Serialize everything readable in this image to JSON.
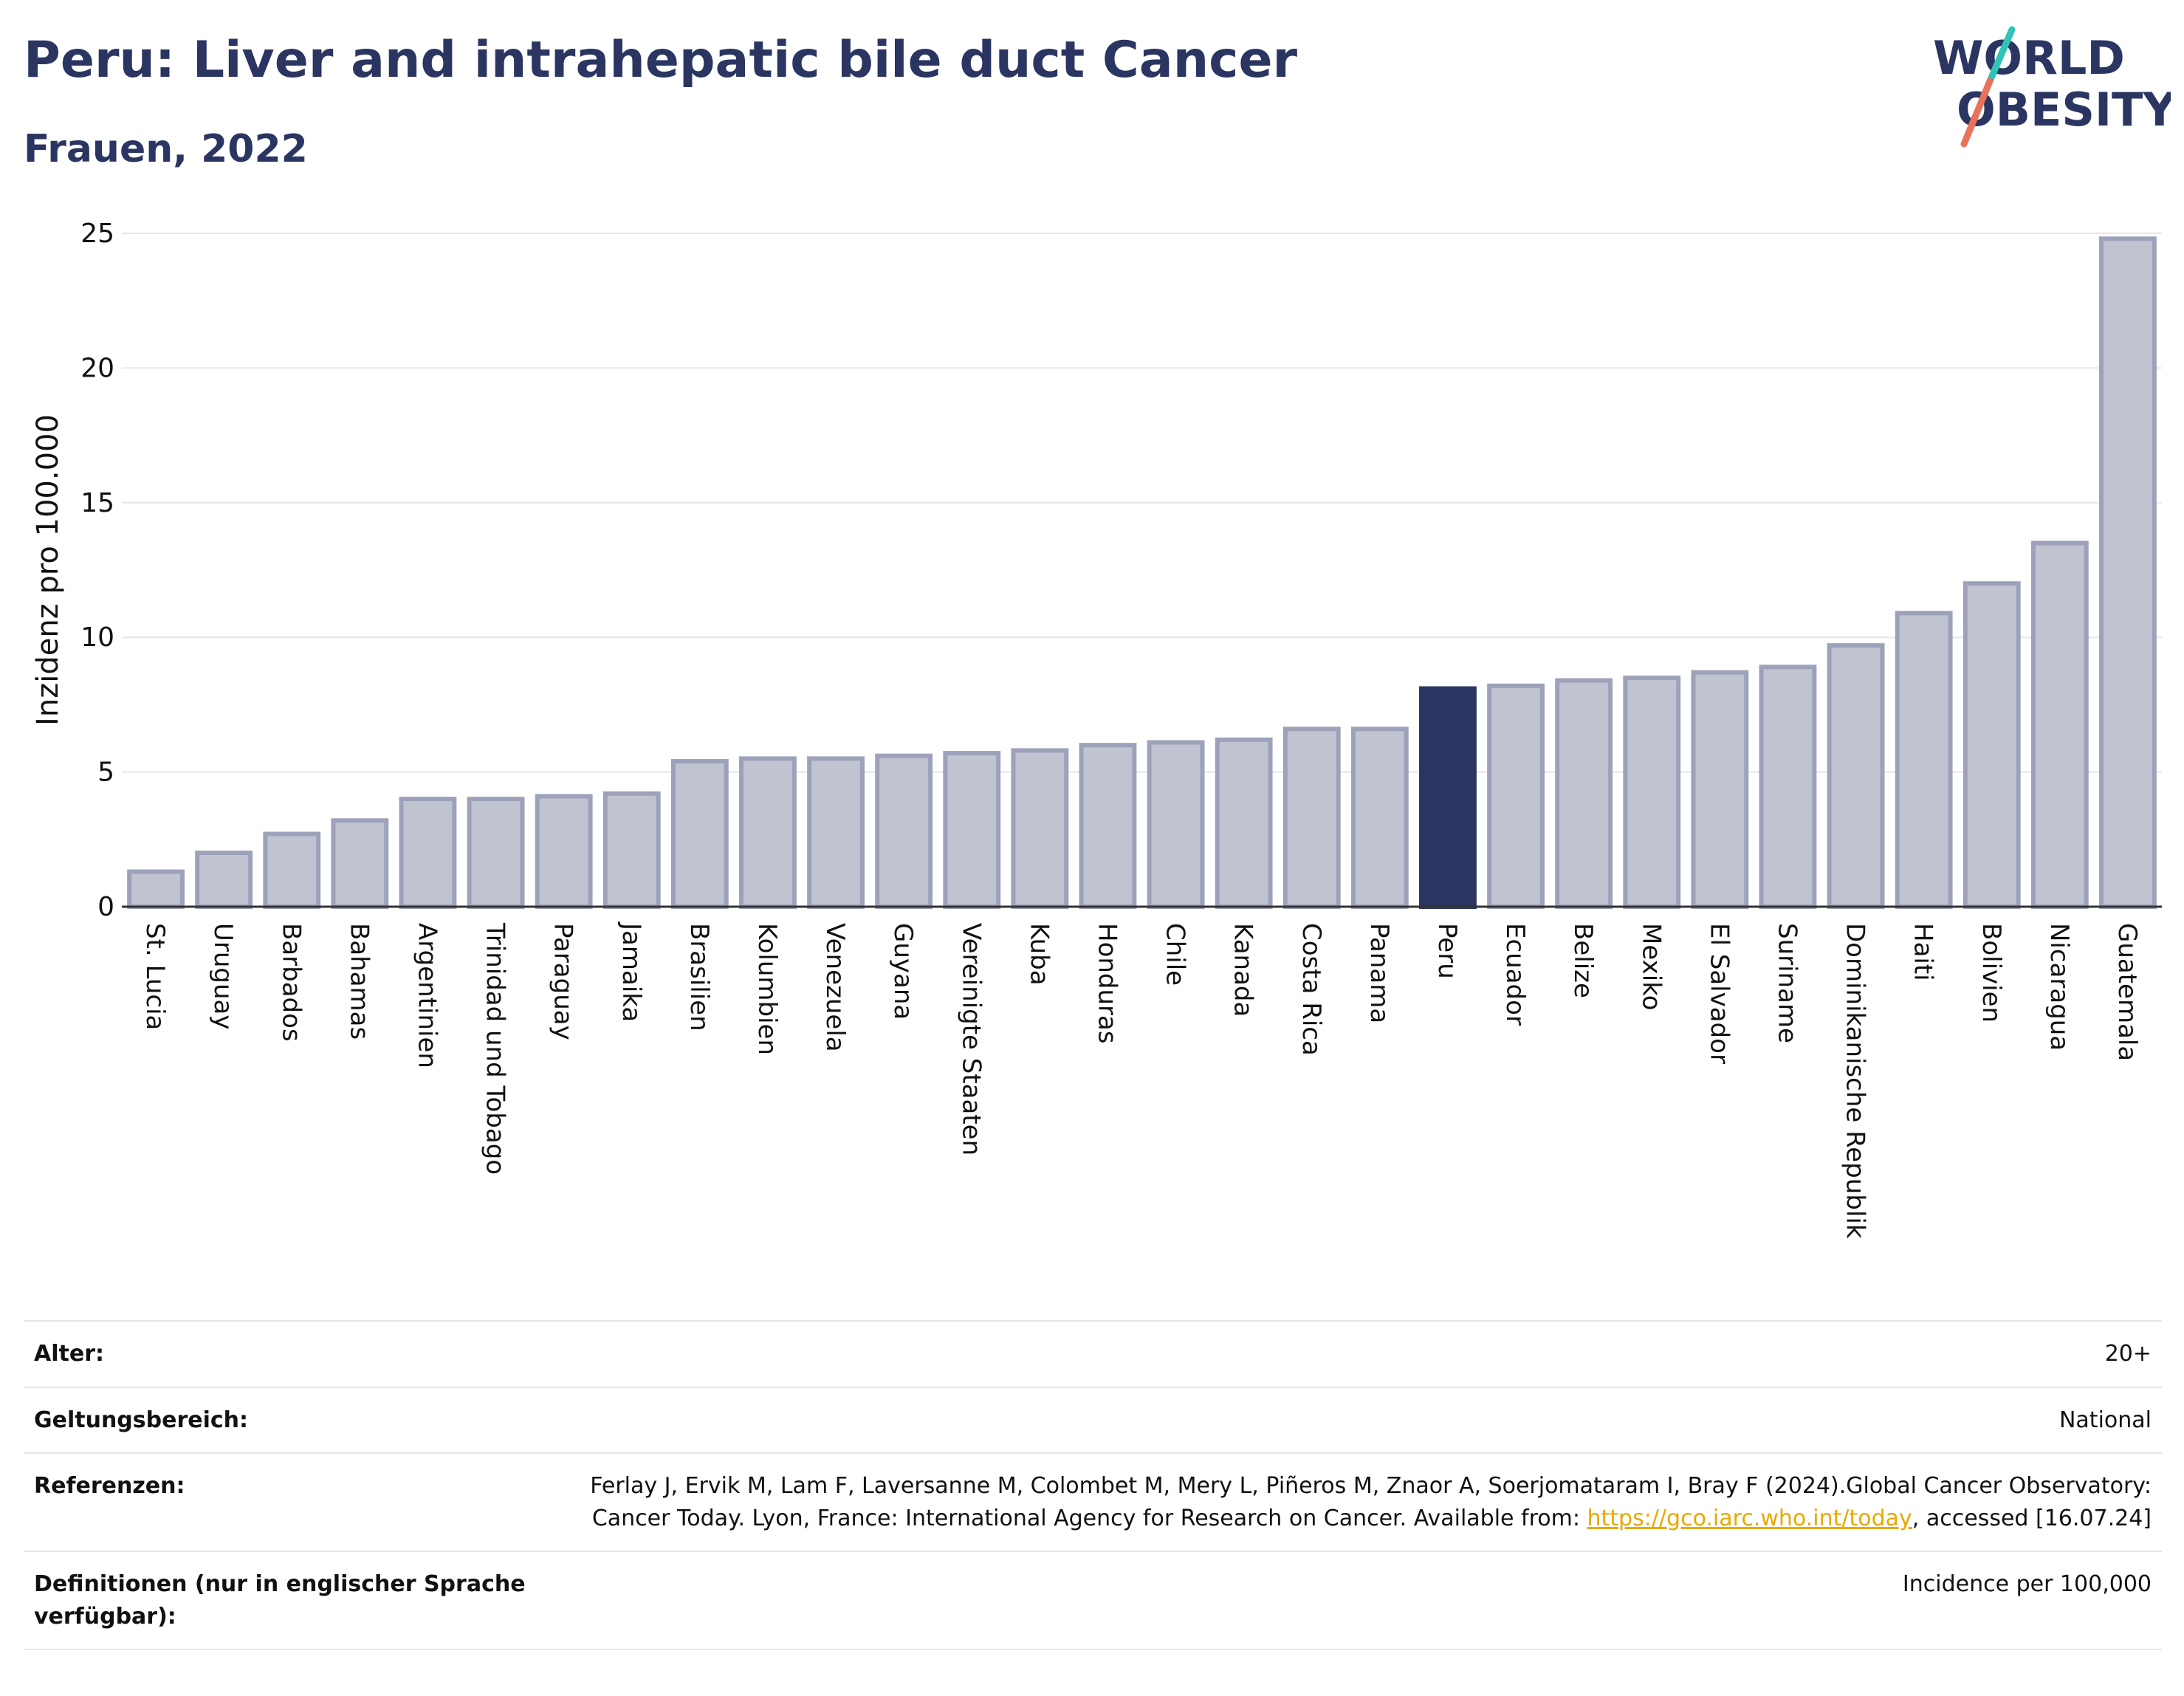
{
  "header": {
    "title": "Peru: Liver and intrahepatic bile duct Cancer",
    "subtitle": "Frauen, 2022"
  },
  "logo": {
    "line1": "WORLD",
    "line2": "OBESITY",
    "colors": {
      "text": "#2b3561",
      "slash_teal": "#2ec4b6",
      "slash_coral": "#e8735a"
    }
  },
  "chart_data": {
    "type": "bar",
    "title": "Peru: Liver and intrahepatic bile duct Cancer",
    "subtitle": "Frauen, 2022",
    "xlabel": "",
    "ylabel": "Inzidenz pro 100.000",
    "ylim": [
      0,
      25
    ],
    "yticks": [
      0,
      5,
      10,
      15,
      20,
      25
    ],
    "grid": true,
    "highlight": "Peru",
    "colors": {
      "bar": "#c0c3d0",
      "bar_border": "#9da2ba",
      "highlight": "#2b3561"
    },
    "categories": [
      "St. Lucia",
      "Uruguay",
      "Barbados",
      "Bahamas",
      "Argentinien",
      "Trinidad und Tobago",
      "Paraguay",
      "Jamaika",
      "Brasilien",
      "Kolumbien",
      "Venezuela",
      "Guyana",
      "Vereinigte Staaten",
      "Kuba",
      "Honduras",
      "Chile",
      "Kanada",
      "Costa Rica",
      "Panama",
      "Peru",
      "Ecuador",
      "Belize",
      "Mexiko",
      "El Salvador",
      "Suriname",
      "Dominikanische Republik",
      "Haiti",
      "Bolivien",
      "Nicaragua",
      "Guatemala"
    ],
    "values": [
      1.3,
      2.0,
      2.7,
      3.2,
      4.0,
      4.0,
      4.1,
      4.2,
      5.4,
      5.5,
      5.5,
      5.6,
      5.7,
      5.8,
      6.0,
      6.1,
      6.2,
      6.6,
      6.6,
      8.1,
      8.2,
      8.4,
      8.5,
      8.7,
      8.9,
      9.7,
      10.9,
      12.0,
      13.5,
      24.8
    ]
  },
  "info": {
    "age": {
      "label": "Alter:",
      "value": "20+"
    },
    "scope": {
      "label": "Geltungsbereich:",
      "value": "National"
    },
    "references": {
      "label": "Referenzen:",
      "text1": "Ferlay J, Ervik M, Lam F, Laversanne M, Colombet M, Mery L, Piñeros M, Znaor A, Soerjomataram I, Bray F (2024).Global Cancer Observatory: Cancer Today. Lyon, France: International Agency for Research on Cancer. Available from: ",
      "link": "https://gco.iarc.who.int/today",
      "text2": ", accessed [16.07.24]"
    },
    "definitions": {
      "label": "Definitionen (nur in englischer Sprache verfügbar):",
      "value": "Incidence per 100,000"
    }
  }
}
